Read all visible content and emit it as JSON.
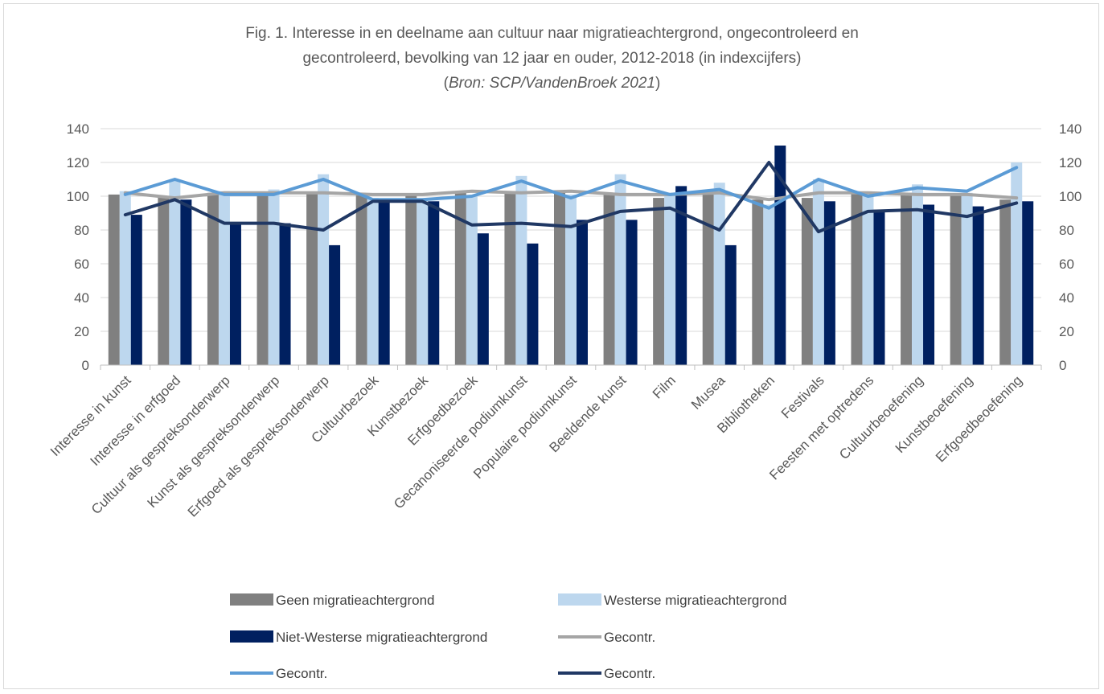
{
  "chart_data": {
    "type": "bar",
    "title_line1": "Fig. 1. Interesse in en deelname aan cultuur naar migratieachtergrond, ongecontroleerd en",
    "title_line2": "gecontroleerd, bevolking van 12 jaar en ouder, 2012-2018 (in indexcijfers)",
    "source_open": "(",
    "source_name": "Bron: SCP/VandenBroek 2021",
    "source_close": ")",
    "ylim": [
      0,
      140
    ],
    "yticks": [
      0,
      20,
      40,
      60,
      80,
      100,
      120,
      140
    ],
    "y2lim": [
      0,
      140
    ],
    "grid": true,
    "legend_position": "bottom",
    "categories": [
      "Interesse in kunst",
      "Interesse in erfgoed",
      "Cultuur als gespreksonderwerp",
      "Kunst als gespreksonderwerp",
      "Erfgoed als gespreksonderwerp",
      "Cultuurbezoek",
      "Kunstbezoek",
      "Erfgoedbezoek",
      "Gecanoniseerde podiumkunst",
      "Populaire podiumkunst",
      "Beeldende kunst",
      "Film",
      "Musea",
      "Bibliotheken",
      "Festivals",
      "Feesten met optredens",
      "Cultuurbeoefening",
      "Kunstbeoefening",
      "Erfgoedbeoefening"
    ],
    "series": [
      {
        "name": "Geen migratieachtergrond",
        "kind": "bar",
        "color": "#808080",
        "values": [
          101,
          100,
          102,
          102,
          102,
          101,
          101,
          102,
          102,
          102,
          102,
          99,
          101,
          98,
          99,
          102,
          102,
          101,
          98
        ]
      },
      {
        "name": "Westerse migratieachtergrond",
        "kind": "bar",
        "color": "#bdd7ee",
        "values": [
          103,
          110,
          103,
          104,
          113,
          99,
          98,
          100,
          112,
          101,
          113,
          101,
          108,
          95,
          110,
          101,
          107,
          102,
          120
        ]
      },
      {
        "name": "Niet-Westerse migratieachtergrond",
        "kind": "bar",
        "color": "#002060",
        "values": [
          89,
          98,
          84,
          84,
          71,
          98,
          97,
          78,
          72,
          86,
          86,
          106,
          71,
          130,
          97,
          92,
          95,
          94,
          97
        ]
      },
      {
        "name": "Gecontr.",
        "kind": "line",
        "color": "#a5a5a5",
        "values": [
          102,
          99,
          102,
          102,
          102,
          101,
          101,
          103,
          102,
          103,
          101,
          101,
          102,
          98,
          102,
          102,
          101,
          101,
          99
        ]
      },
      {
        "name": "Gecontr.",
        "kind": "line",
        "color": "#5b9bd5",
        "values": [
          101,
          110,
          101,
          101,
          110,
          98,
          98,
          100,
          109,
          99,
          109,
          101,
          104,
          93,
          110,
          100,
          105,
          103,
          117
        ]
      },
      {
        "name": "Gecontr.",
        "kind": "line",
        "color": "#203864",
        "values": [
          89,
          98,
          84,
          84,
          80,
          97,
          97,
          83,
          84,
          82,
          91,
          93,
          80,
          120,
          79,
          91,
          92,
          88,
          96
        ]
      }
    ]
  }
}
